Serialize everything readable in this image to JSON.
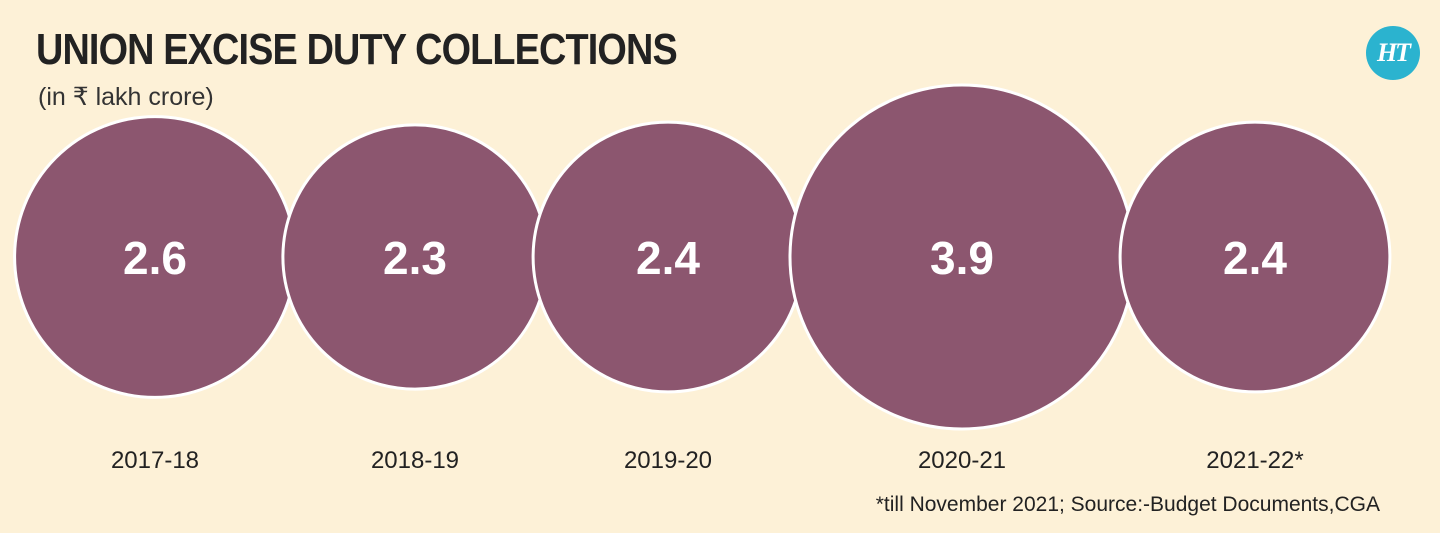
{
  "header": {
    "title": "UNION EXCISE DUTY COLLECTIONS",
    "subtitle": "(in ₹ lakh crore)",
    "logo_text": "HT"
  },
  "chart_data": {
    "type": "bubble",
    "title": "UNION EXCISE DUTY COLLECTIONS",
    "subtitle": "(in ₹ lakh crore)",
    "categories": [
      "2017-18",
      "2018-19",
      "2019-20",
      "2020-21",
      "2021-22*"
    ],
    "values": [
      2.6,
      2.3,
      2.4,
      3.9,
      2.4
    ],
    "value_labels": [
      "2.6",
      "2.3",
      "2.4",
      "3.9",
      "2.4"
    ],
    "bubble_color": "#8c566f",
    "outline_color": "#ffffff",
    "label_color": "#ffffff"
  },
  "footnote": "*till November 2021; Source:-Budget Documents,CGA",
  "colors": {
    "background": "#fdf1d7",
    "bubble": "#8c566f",
    "logo": "#2bb3cf",
    "text": "#222222"
  }
}
